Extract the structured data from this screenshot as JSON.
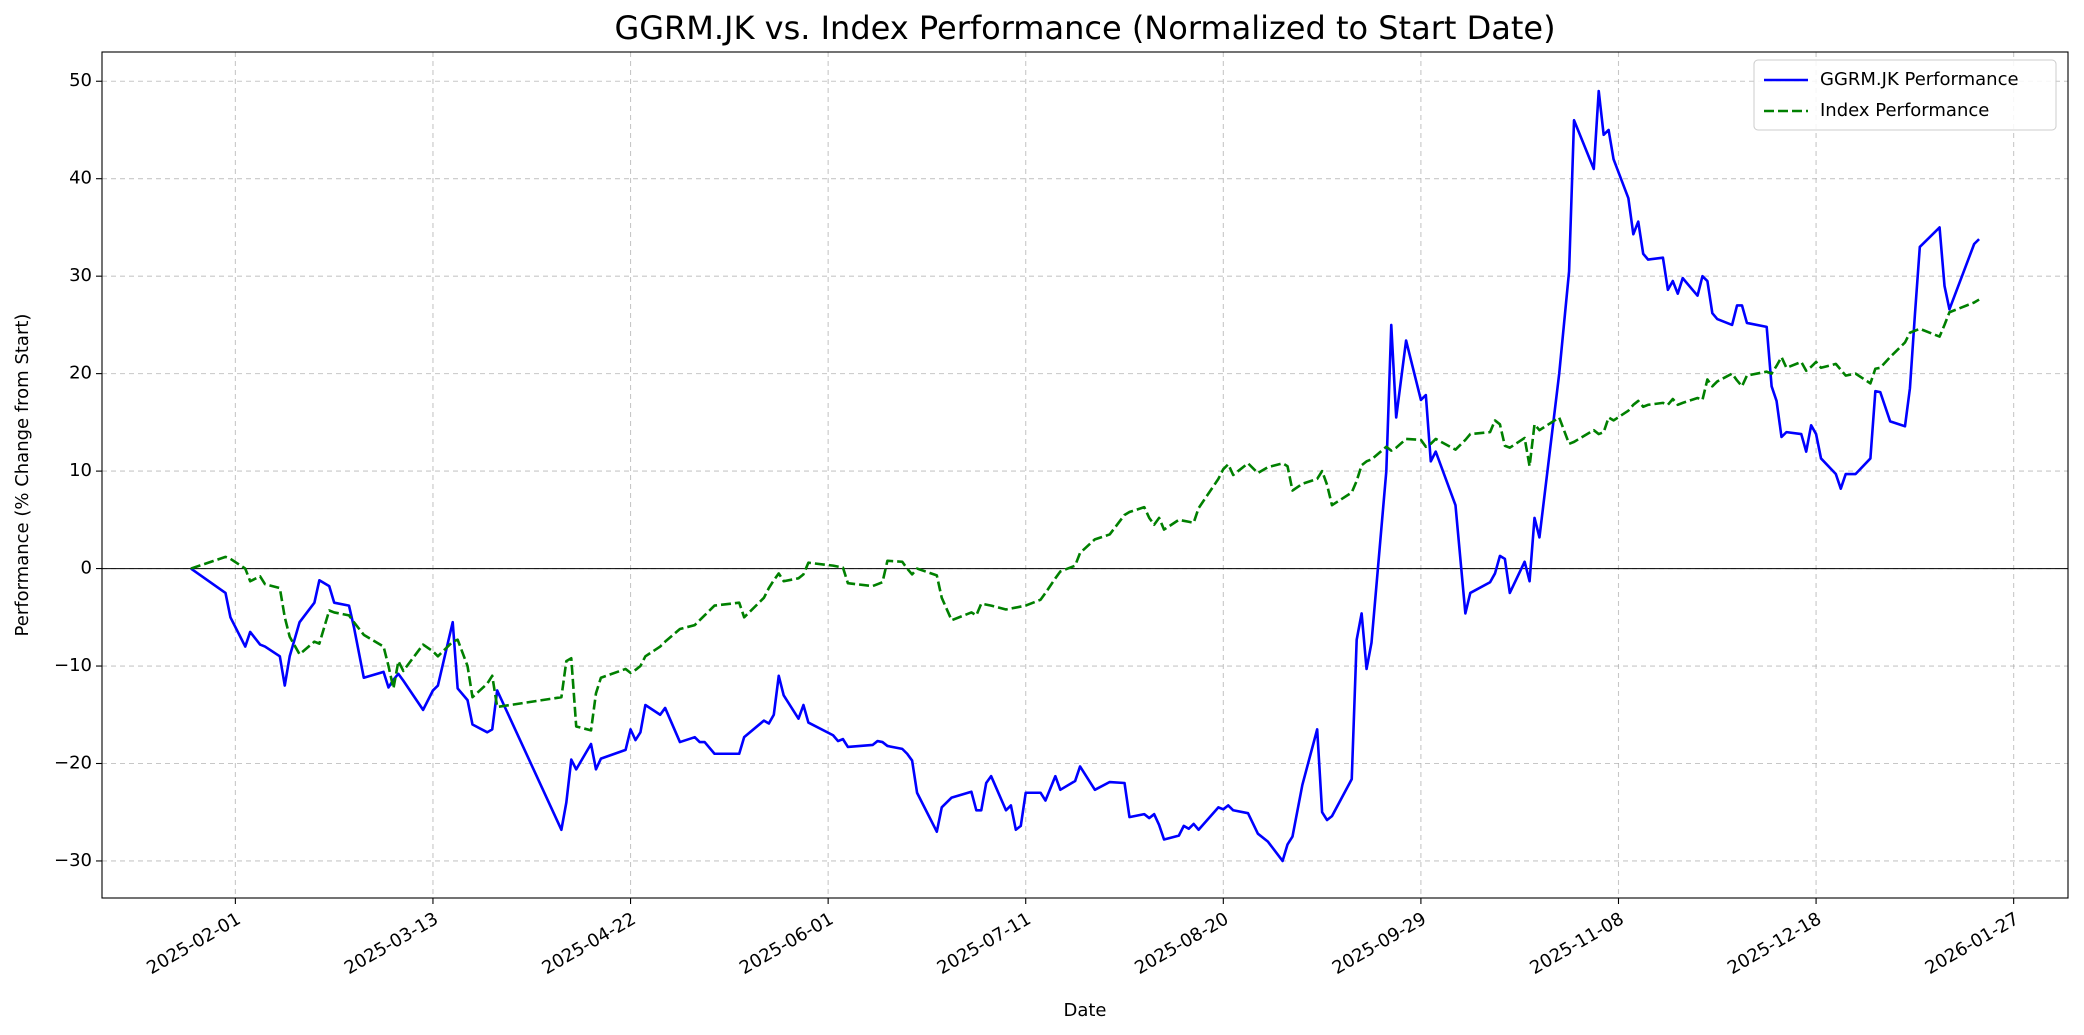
{
  "chart_data": {
    "type": "line",
    "title": "GGRM.JK vs. Index Performance (Normalized to Start Date)",
    "xlabel": "Date",
    "ylabel": "Performance (% Change from Start)",
    "x": [
      "2025-01-23",
      "2025-01-30",
      "2025-01-31",
      "2025-02-03",
      "2025-02-04",
      "2025-02-06",
      "2025-02-07",
      "2025-02-10",
      "2025-02-11",
      "2025-02-12",
      "2025-02-14",
      "2025-02-17",
      "2025-02-18",
      "2025-02-20",
      "2025-02-21",
      "2025-02-24",
      "2025-02-25",
      "2025-02-27",
      "2025-03-03",
      "2025-03-04",
      "2025-03-05",
      "2025-03-06",
      "2025-03-07",
      "2025-03-11",
      "2025-03-13",
      "2025-03-14",
      "2025-03-17",
      "2025-03-18",
      "2025-03-20",
      "2025-03-21",
      "2025-03-24",
      "2025-03-25",
      "2025-03-26",
      "2025-04-08",
      "2025-04-09",
      "2025-04-10",
      "2025-04-11",
      "2025-04-14",
      "2025-04-15",
      "2025-04-16",
      "2025-04-21",
      "2025-04-22",
      "2025-04-23",
      "2025-04-24",
      "2025-04-25",
      "2025-04-28",
      "2025-04-29",
      "2025-05-02",
      "2025-05-05",
      "2025-05-06",
      "2025-05-07",
      "2025-05-09",
      "2025-05-14",
      "2025-05-15",
      "2025-05-19",
      "2025-05-20",
      "2025-05-21",
      "2025-05-22",
      "2025-05-23",
      "2025-05-26",
      "2025-05-27",
      "2025-05-28",
      "2025-06-02",
      "2025-06-03",
      "2025-06-04",
      "2025-06-05",
      "2025-06-10",
      "2025-06-11",
      "2025-06-12",
      "2025-06-13",
      "2025-06-16",
      "2025-06-17",
      "2025-06-18",
      "2025-06-19",
      "2025-06-23",
      "2025-06-24",
      "2025-06-26",
      "2025-06-30",
      "2025-07-01",
      "2025-07-02",
      "2025-07-03",
      "2025-07-04",
      "2025-07-07",
      "2025-07-08",
      "2025-07-09",
      "2025-07-10",
      "2025-07-11",
      "2025-07-14",
      "2025-07-15",
      "2025-07-17",
      "2025-07-18",
      "2025-07-21",
      "2025-07-22",
      "2025-07-25",
      "2025-07-28",
      "2025-07-31",
      "2025-08-01",
      "2025-08-04",
      "2025-08-05",
      "2025-08-06",
      "2025-08-07",
      "2025-08-08",
      "2025-08-11",
      "2025-08-12",
      "2025-08-13",
      "2025-08-14",
      "2025-08-15",
      "2025-08-19",
      "2025-08-20",
      "2025-08-21",
      "2025-08-22",
      "2025-08-25",
      "2025-08-27",
      "2025-08-29",
      "2025-09-01",
      "2025-09-02",
      "2025-09-03",
      "2025-09-05",
      "2025-09-08",
      "2025-09-09",
      "2025-09-10",
      "2025-09-11",
      "2025-09-15",
      "2025-09-16",
      "2025-09-17",
      "2025-09-18",
      "2025-09-19",
      "2025-09-22",
      "2025-09-23",
      "2025-09-24",
      "2025-09-26",
      "2025-09-29",
      "2025-09-30",
      "2025-10-01",
      "2025-10-02",
      "2025-10-06",
      "2025-10-08",
      "2025-10-09",
      "2025-10-13",
      "2025-10-14",
      "2025-10-15",
      "2025-10-16",
      "2025-10-17",
      "2025-10-20",
      "2025-10-21",
      "2025-10-22",
      "2025-10-23",
      "2025-10-27",
      "2025-10-29",
      "2025-10-30",
      "2025-11-03",
      "2025-11-04",
      "2025-11-05",
      "2025-11-06",
      "2025-11-07",
      "2025-11-10",
      "2025-11-11",
      "2025-11-12",
      "2025-11-13",
      "2025-11-14",
      "2025-11-17",
      "2025-11-18",
      "2025-11-19",
      "2025-11-20",
      "2025-11-21",
      "2025-11-24",
      "2025-11-25",
      "2025-11-26",
      "2025-11-27",
      "2025-11-28",
      "2025-12-01",
      "2025-12-02",
      "2025-12-03",
      "2025-12-04",
      "2025-12-08",
      "2025-12-09",
      "2025-12-10",
      "2025-12-11",
      "2025-12-12",
      "2025-12-15",
      "2025-12-16",
      "2025-12-17",
      "2025-12-18",
      "2025-12-19",
      "2025-12-22",
      "2025-12-23",
      "2025-12-24",
      "2025-12-26",
      "2025-12-29",
      "2025-12-30",
      "2025-12-31",
      "2026-01-02",
      "2026-01-05",
      "2026-01-06",
      "2026-01-07",
      "2026-01-08",
      "2026-01-12",
      "2026-01-13",
      "2026-01-14",
      "2026-01-19",
      "2026-01-20"
    ],
    "series": [
      {
        "name": "GGRM.JK Performance",
        "color": "#0000ff",
        "linestyle": "solid",
        "values": [
          0,
          -2.5,
          -5,
          -8,
          -6.5,
          -7.8,
          -8,
          -9,
          -12,
          -9,
          -5.5,
          -3.5,
          -1.2,
          -1.8,
          -3.5,
          -3.8,
          -6,
          -11.2,
          -10.6,
          -12.2,
          -11.4,
          -10.8,
          -11.5,
          -14.5,
          -12.5,
          -12,
          -5.5,
          -12.3,
          -13.5,
          -16,
          -16.8,
          -16.5,
          -12.5,
          -26.8,
          -24,
          -19.6,
          -20.6,
          -18,
          -20.6,
          -19.5,
          -18.6,
          -16.5,
          -17.6,
          -16.8,
          -14,
          -15,
          -14.3,
          -17.8,
          -17.3,
          -17.8,
          -17.8,
          -19,
          -19,
          -17.3,
          -15.6,
          -15.9,
          -15,
          -11,
          -13,
          -15.4,
          -14,
          -15.8,
          -17.1,
          -17.7,
          -17.5,
          -18.3,
          -18.1,
          -17.7,
          -17.8,
          -18.2,
          -18.5,
          -19,
          -19.7,
          -23,
          -27,
          -24.5,
          -23.5,
          -22.9,
          -24.8,
          -24.8,
          -22,
          -21.3,
          -24.8,
          -24.3,
          -26.8,
          -26.4,
          -23,
          -23,
          -23.8,
          -21.3,
          -22.7,
          -21.8,
          -20.3,
          -22.7,
          -21.9,
          -22,
          -25.5,
          -25.2,
          -25.6,
          -25.2,
          -26.3,
          -27.8,
          -27.4,
          -26.4,
          -26.7,
          -26.2,
          -26.8,
          -24.5,
          -24.7,
          -24.3,
          -24.8,
          -25.1,
          -27.2,
          -28,
          -30,
          -28.3,
          -27.5,
          -22.2,
          -16.5,
          -25,
          -25.8,
          -25.4,
          -21.6,
          -7.3,
          -4.6,
          -10.3,
          -7.6,
          10,
          25,
          15.5,
          23.4,
          17.3,
          17.8,
          11,
          12,
          6.5,
          -4.6,
          -2.5,
          -1.4,
          -0.5,
          1.3,
          1,
          -2.5,
          0.7,
          -1.3,
          5.2,
          3.2,
          20,
          30.5,
          46,
          41,
          49,
          44.5,
          45,
          42,
          38,
          34.3,
          35.6,
          32.3,
          31.7,
          31.9,
          28.6,
          29.5,
          28.2,
          29.8,
          28,
          30,
          29.5,
          26.2,
          25.6,
          25,
          27,
          27,
          25.2,
          24.8,
          18.7,
          17.2,
          13.5,
          14,
          13.8,
          12,
          14.7,
          13.8,
          11.3,
          9.7,
          8.2,
          9.7,
          9.7,
          11.3,
          18.2,
          18.1,
          15.1,
          14.6,
          18.5,
          26,
          33,
          35,
          29,
          26.6,
          33.3,
          33.8
        ]
      },
      {
        "name": "Index Performance",
        "color": "#008000",
        "linestyle": "dashed",
        "values": [
          0,
          1.2,
          1,
          0,
          -1.3,
          -0.8,
          -1.6,
          -2,
          -5,
          -7,
          -8.8,
          -7.5,
          -7.7,
          -4.3,
          -4.5,
          -4.8,
          -5.5,
          -6.8,
          -8,
          -10,
          -12.3,
          -9.5,
          -10.5,
          -7.8,
          -8.5,
          -9,
          -7.5,
          -7.3,
          -10,
          -13.2,
          -11.8,
          -11,
          -14.2,
          -13.2,
          -9.5,
          -9.2,
          -16.2,
          -16.6,
          -12.8,
          -11.2,
          -10.3,
          -10.7,
          -10.4,
          -10,
          -9,
          -8,
          -7.5,
          -6.2,
          -5.8,
          -5.3,
          -4.8,
          -3.8,
          -3.5,
          -5,
          -3,
          -2,
          -1.2,
          -0.5,
          -1.3,
          -1,
          -0.6,
          0.6,
          0.3,
          0.2,
          0.1,
          -1.5,
          -1.8,
          -1.6,
          -1.4,
          0.8,
          0.7,
          0,
          -0.6,
          0,
          -0.7,
          -3,
          -5.3,
          -4.5,
          -4.8,
          -3.6,
          -3.7,
          -3.8,
          -4.2,
          -4.1,
          -4,
          -3.9,
          -3.8,
          -3.2,
          -2.5,
          -1,
          -0.3,
          0.3,
          1.6,
          3,
          3.5,
          5.5,
          5.8,
          6.3,
          5.2,
          4.5,
          5.2,
          4,
          5,
          4.9,
          4.8,
          4.7,
          6.2,
          9.2,
          10.2,
          10.7,
          9.6,
          10.8,
          9.8,
          10.4,
          10.8,
          10.5,
          8,
          8.7,
          9.2,
          10,
          8.6,
          6.5,
          7.8,
          9,
          10.6,
          11,
          11.2,
          12.5,
          12.1,
          12.4,
          13.3,
          13.2,
          12.5,
          12.8,
          13.3,
          12.2,
          13.2,
          13.8,
          14,
          15.2,
          14.8,
          12.6,
          12.4,
          13.4,
          10.5,
          14.8,
          14.2,
          15.5,
          12.8,
          13,
          14.2,
          13.8,
          14,
          15.5,
          15.2,
          16.2,
          16.8,
          17.2,
          16.6,
          16.8,
          17,
          16.8,
          17.4,
          16.8,
          17,
          17.5,
          17.3,
          19.4,
          18.7,
          19.2,
          20,
          19.3,
          18.7,
          19.8,
          20.2,
          20,
          20.8,
          21.7,
          20.6,
          21.2,
          20.3,
          20.7,
          21.2,
          20.6,
          21,
          20.4,
          19.8,
          20,
          19,
          20.5,
          20.6,
          21.7,
          23.2,
          24.2,
          24.4,
          24.6,
          23.8,
          25,
          26.3,
          27.3,
          27.6
        ]
      }
    ],
    "hline": 0,
    "xlim": [
      "2025-01-05",
      "2026-02-07"
    ],
    "xticks": [
      "2025-02-01",
      "2025-03-13",
      "2025-04-22",
      "2025-06-01",
      "2025-07-11",
      "2025-08-20",
      "2025-09-29",
      "2025-11-08",
      "2025-12-18",
      "2026-01-27"
    ],
    "ylim": [
      -33.8,
      53
    ],
    "yticks": [
      {
        "value": -30,
        "label": "−30"
      },
      {
        "value": -20,
        "label": "−20"
      },
      {
        "value": -10,
        "label": "−10"
      },
      0,
      10,
      20,
      30,
      40,
      50
    ],
    "grid": true,
    "legend": "upper right"
  }
}
